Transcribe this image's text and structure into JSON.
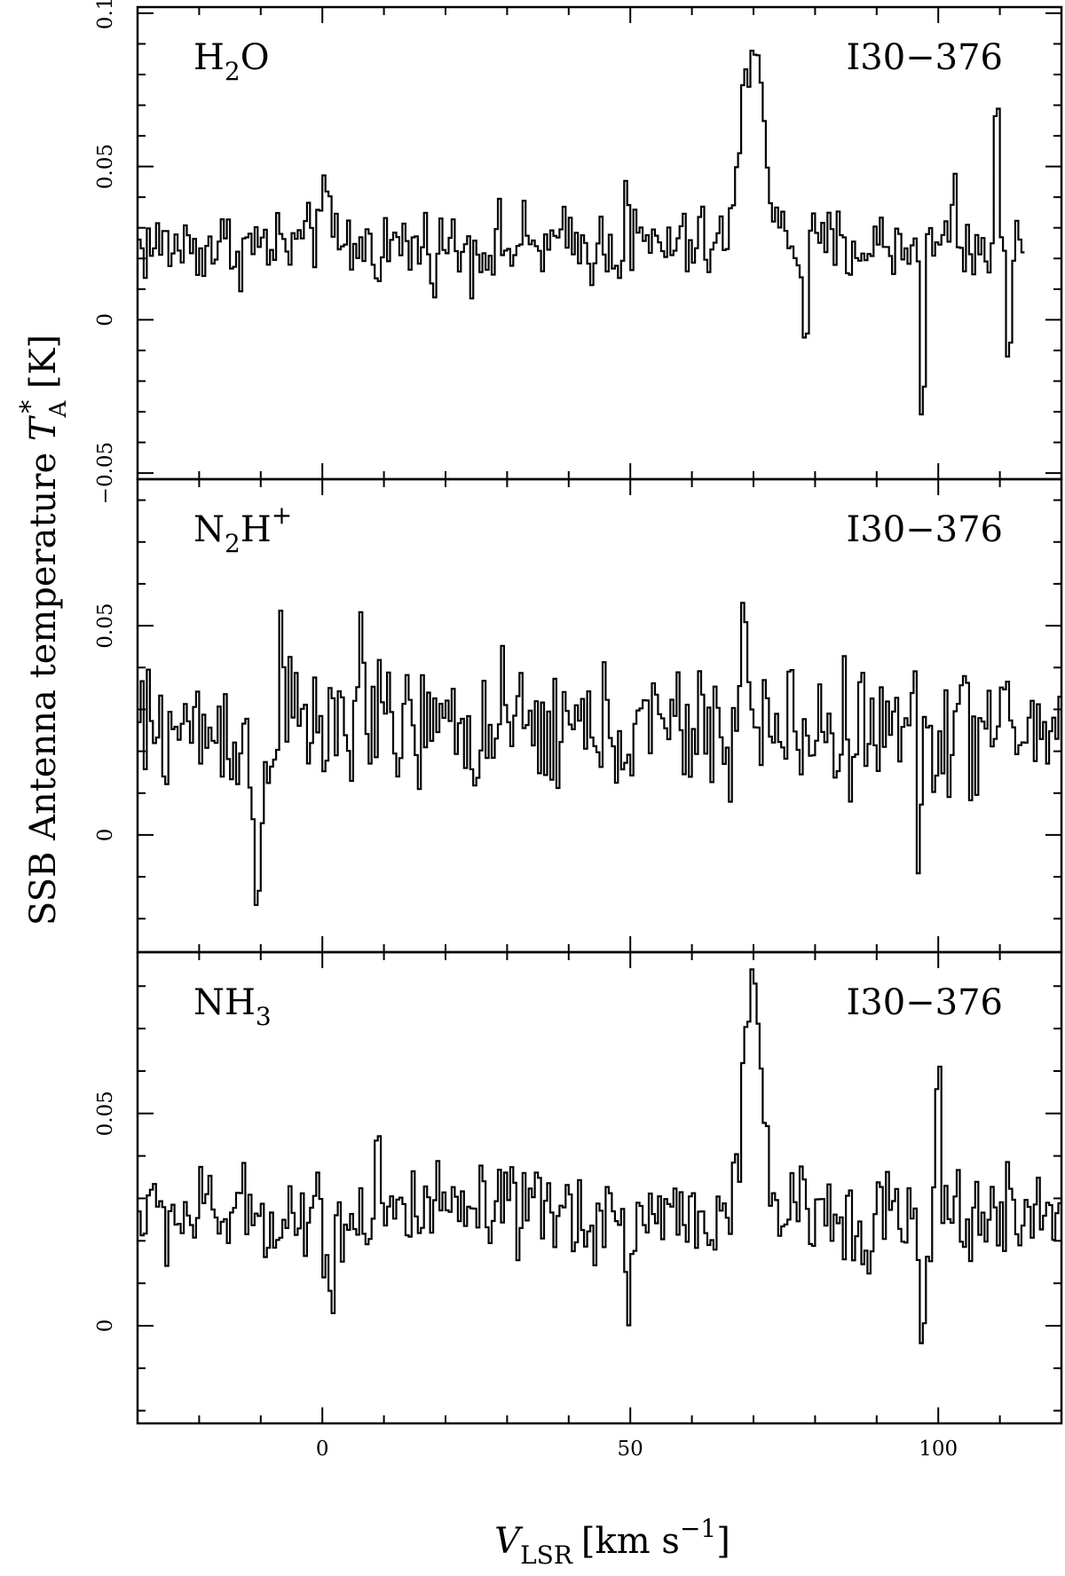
{
  "chart_data": {
    "type": "line",
    "style": "step",
    "xlabel": {
      "main": "V",
      "sub": "LSR",
      "unit": "[km s",
      "exp": "−1",
      "close": "]"
    },
    "ylabel": {
      "main": "SSB Antenna temperature ",
      "sym": "T",
      "sub": "A",
      "sup": "*",
      "unit": " [K]"
    },
    "xlim": [
      -30,
      120
    ],
    "x_ticks": [
      0,
      50,
      100
    ],
    "x_tick_labels": [
      "0",
      "50",
      "100"
    ],
    "panels": [
      {
        "id": "h2o",
        "species_main": "H",
        "species_sub": "2",
        "species_tail": "O",
        "species_sup": "",
        "source": "I30−376",
        "ylim": [
          -0.052,
          0.102
        ],
        "y_ticks": [
          -0.05,
          0,
          0.05,
          0.1
        ],
        "y_tick_labels": [
          "−0.05",
          "0",
          "0.05",
          "0.1"
        ],
        "channel_width": 0.5,
        "x_start": -30,
        "x_end": 114,
        "baseline": 0.024,
        "noise": 0.009,
        "features": [
          {
            "x": 70,
            "width": 1.8,
            "amp": 0.068
          },
          {
            "x": 0,
            "width": 0.6,
            "amp": 0.025
          },
          {
            "x": 49.5,
            "width": 0.3,
            "amp": 0.025
          },
          {
            "x": 78.5,
            "width": 0.4,
            "amp": -0.03
          },
          {
            "x": 97.5,
            "width": 0.3,
            "amp": -0.06
          },
          {
            "x": 102.5,
            "width": 0.3,
            "amp": 0.03
          },
          {
            "x": 109.5,
            "width": 0.3,
            "amp": 0.05
          },
          {
            "x": 111.5,
            "width": 0.3,
            "amp": -0.04
          }
        ]
      },
      {
        "id": "n2hp",
        "species_main": "N",
        "species_sub": "2",
        "species_tail": "H",
        "species_sup": "+",
        "source": "I30−376",
        "ylim": [
          -0.028,
          0.085
        ],
        "y_ticks": [
          0,
          0.05
        ],
        "y_tick_labels": [
          "0",
          "0.05"
        ],
        "channel_width": 0.5,
        "x_start": -30,
        "x_end": 120,
        "baseline": 0.025,
        "noise": 0.011,
        "features": [
          {
            "x": -10.5,
            "width": 0.8,
            "amp": -0.04
          },
          {
            "x": -6.5,
            "width": 0.5,
            "amp": 0.025
          },
          {
            "x": 6.5,
            "width": 0.5,
            "amp": 0.025
          },
          {
            "x": 68.5,
            "width": 0.5,
            "amp": 0.028
          },
          {
            "x": 97,
            "width": 0.3,
            "amp": -0.03
          }
        ]
      },
      {
        "id": "nh3",
        "species_main": "NH",
        "species_sub": "3",
        "species_tail": "",
        "species_sup": "",
        "source": "I30−376",
        "ylim": [
          -0.023,
          0.088
        ],
        "y_ticks": [
          0,
          0.05
        ],
        "y_tick_labels": [
          "0",
          "0.05"
        ],
        "channel_width": 0.5,
        "x_start": -30,
        "x_end": 120,
        "baseline": 0.026,
        "noise": 0.008,
        "features": [
          {
            "x": 70,
            "width": 1.5,
            "amp": 0.05
          },
          {
            "x": 1.5,
            "width": 0.4,
            "amp": -0.025
          },
          {
            "x": 9,
            "width": 0.3,
            "amp": 0.025
          },
          {
            "x": 49.5,
            "width": 0.3,
            "amp": -0.03
          },
          {
            "x": 97.5,
            "width": 0.8,
            "amp": -0.025
          },
          {
            "x": 100,
            "width": 0.4,
            "amp": 0.03
          }
        ]
      }
    ]
  }
}
